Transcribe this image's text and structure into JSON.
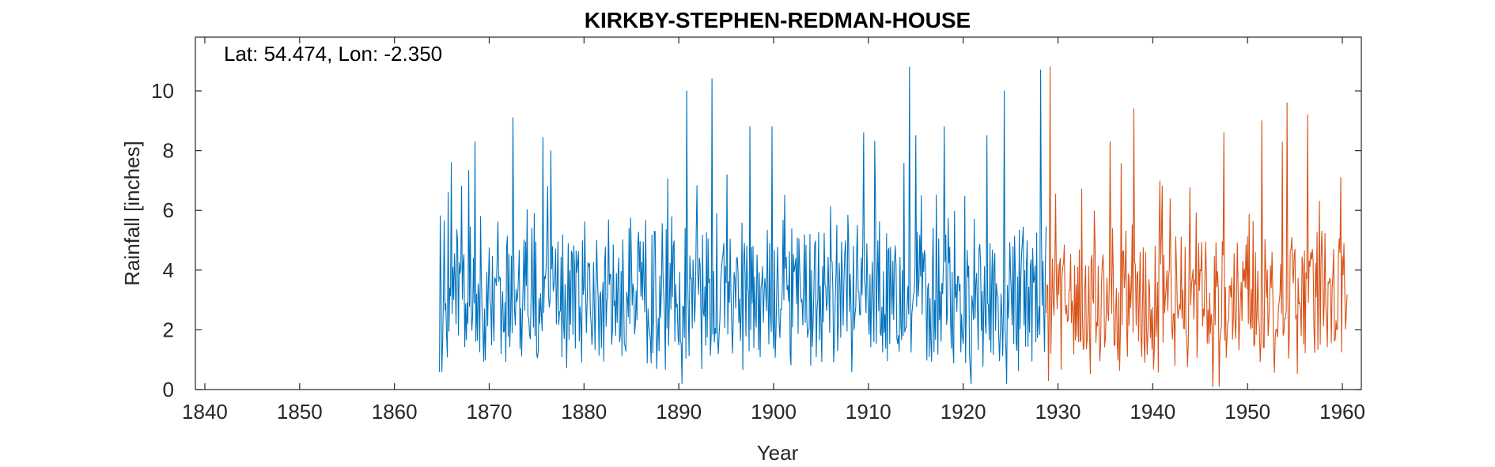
{
  "chart_data": {
    "type": "line",
    "title": "KIRKBY-STEPHEN-REDMAN-HOUSE",
    "xlabel": "Year",
    "ylabel": "Rainfall [inches]",
    "annotation": "Lat: 54.474, Lon: -2.350",
    "xlim": [
      1839,
      1962
    ],
    "ylim": [
      0,
      11.8
    ],
    "xticks": [
      1840,
      1850,
      1860,
      1870,
      1880,
      1890,
      1900,
      1910,
      1920,
      1930,
      1940,
      1950,
      1960
    ],
    "yticks": [
      0,
      2,
      4,
      6,
      8,
      10
    ],
    "grid": false,
    "resolution": "monthly",
    "series": [
      {
        "color": "#0072BD",
        "start": 1864.75,
        "end": 1928.75,
        "base_level": 3.2,
        "noted_peaks": [
          {
            "x": 1866.0,
            "y": 7.6
          },
          {
            "x": 1868.5,
            "y": 8.3
          },
          {
            "x": 1872.5,
            "y": 9.1
          },
          {
            "x": 1876.5,
            "y": 8.0
          },
          {
            "x": 1890.8,
            "y": 10.0
          },
          {
            "x": 1893.5,
            "y": 10.4
          },
          {
            "x": 1897.5,
            "y": 8.8
          },
          {
            "x": 1899.8,
            "y": 8.8
          },
          {
            "x": 1909.5,
            "y": 8.6
          },
          {
            "x": 1914.3,
            "y": 10.8
          },
          {
            "x": 1915.0,
            "y": 8.5
          },
          {
            "x": 1918.0,
            "y": 8.8
          },
          {
            "x": 1922.5,
            "y": 8.5
          },
          {
            "x": 1924.3,
            "y": 10.0
          },
          {
            "x": 1928.2,
            "y": 10.7
          }
        ],
        "noted_troughs": [
          {
            "x": 1865.0,
            "y": 0.6
          },
          {
            "x": 1890.3,
            "y": 0.2
          },
          {
            "x": 1920.8,
            "y": 0.2
          },
          {
            "x": 1924.6,
            "y": 0.2
          }
        ]
      },
      {
        "color": "#D95319",
        "start": 1928.75,
        "end": 1960.5,
        "base_level": 3.0,
        "noted_peaks": [
          {
            "x": 1929.2,
            "y": 10.8
          },
          {
            "x": 1935.5,
            "y": 8.3
          },
          {
            "x": 1938.0,
            "y": 9.4
          },
          {
            "x": 1947.5,
            "y": 8.6
          },
          {
            "x": 1951.5,
            "y": 9.0
          },
          {
            "x": 1954.2,
            "y": 9.6
          },
          {
            "x": 1956.3,
            "y": 9.2
          },
          {
            "x": 1959.8,
            "y": 7.1
          }
        ],
        "noted_troughs": [
          {
            "x": 1929.0,
            "y": 0.3
          },
          {
            "x": 1946.3,
            "y": 0.1
          },
          {
            "x": 1947.0,
            "y": 0.1
          }
        ]
      }
    ]
  }
}
